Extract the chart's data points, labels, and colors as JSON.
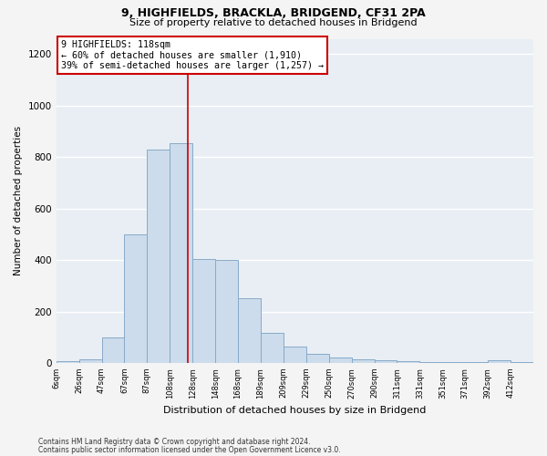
{
  "title_line1": "9, HIGHFIELDS, BRACKLA, BRIDGEND, CF31 2PA",
  "title_line2": "Size of property relative to detached houses in Bridgend",
  "xlabel": "Distribution of detached houses by size in Bridgend",
  "ylabel": "Number of detached properties",
  "categories": [
    "6sqm",
    "26sqm",
    "47sqm",
    "67sqm",
    "87sqm",
    "108sqm",
    "128sqm",
    "148sqm",
    "168sqm",
    "189sqm",
    "209sqm",
    "229sqm",
    "250sqm",
    "270sqm",
    "290sqm",
    "311sqm",
    "331sqm",
    "351sqm",
    "371sqm",
    "392sqm",
    "412sqm"
  ],
  "bar_heights": [
    8,
    15,
    100,
    500,
    830,
    855,
    405,
    400,
    252,
    115,
    65,
    35,
    20,
    15,
    10,
    8,
    5,
    5,
    5,
    10,
    5
  ],
  "bar_color": "#ccdcec",
  "bar_edge_color": "#88aac8",
  "annotation_box_color": "#cc0000",
  "annotation_text_line1": "9 HIGHFIELDS: 118sqm",
  "annotation_text_line2": "← 60% of detached houses are smaller (1,910)",
  "annotation_text_line3": "39% of semi-detached houses are larger (1,257) →",
  "vline_pos": 5.8,
  "vline_color": "#cc0000",
  "ylim_max": 1260,
  "yticks": [
    0,
    200,
    400,
    600,
    800,
    1000,
    1200
  ],
  "footnote1": "Contains HM Land Registry data © Crown copyright and database right 2024.",
  "footnote2": "Contains public sector information licensed under the Open Government Licence v3.0.",
  "bg_color": "#e8eef4",
  "grid_color": "#ffffff",
  "fig_facecolor": "#f4f4f4"
}
